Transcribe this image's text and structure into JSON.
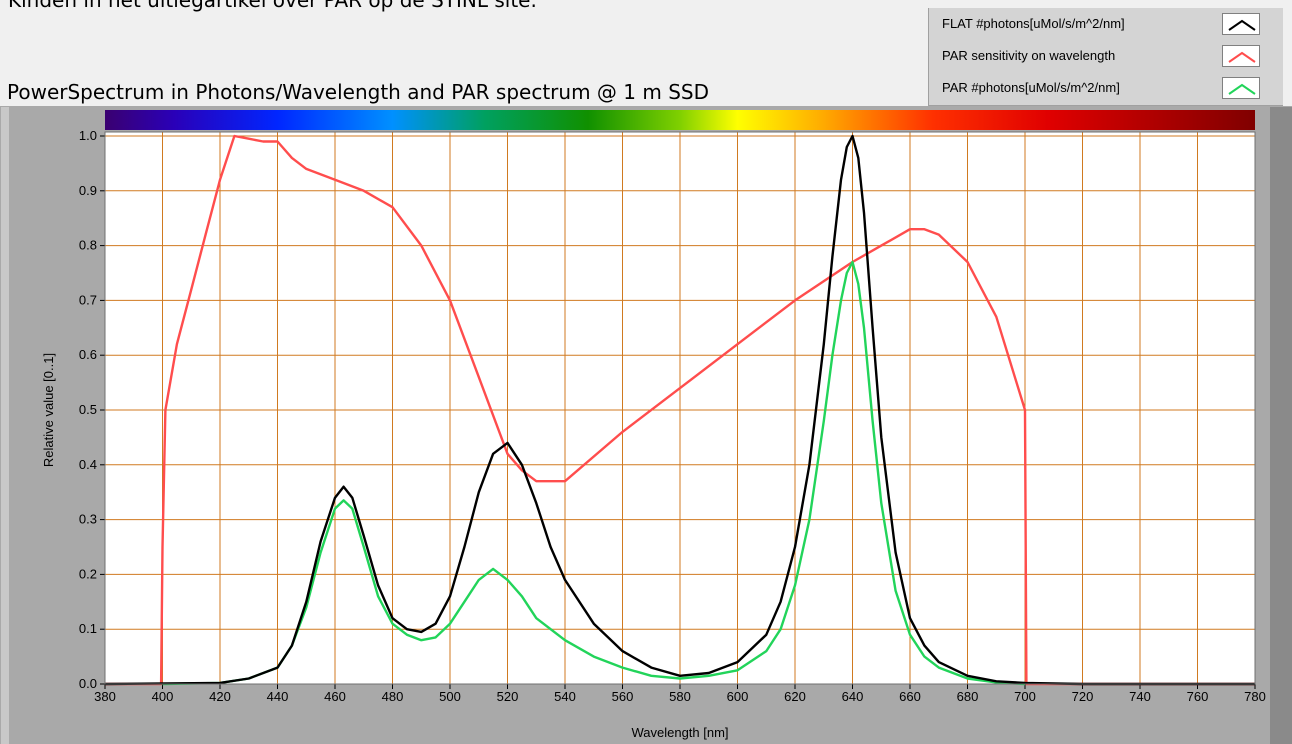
{
  "caption": "Kinden in het uitlegartikel over PAR op de STINL site.",
  "chart_data": {
    "type": "line",
    "title": "PowerSpectrum in Photons/Wavelength and PAR spectrum @ 1 m SSD",
    "xlabel": "Wavelength [nm]",
    "ylabel": "Relative value [0..1]",
    "xlim": [
      380,
      780
    ],
    "ylim": [
      0,
      1.05
    ],
    "xticks": [
      "380",
      "400",
      "420",
      "440",
      "460",
      "480",
      "500",
      "520",
      "540",
      "560",
      "580",
      "600",
      "620",
      "640",
      "660",
      "680",
      "700",
      "720",
      "740",
      "760",
      "780"
    ],
    "yticks": [
      "0.0",
      "0.1",
      "0.2",
      "0.3",
      "0.4",
      "0.5",
      "0.6",
      "0.7",
      "0.8",
      "0.9",
      "1.0"
    ],
    "grid": true,
    "legend_position": "top-right",
    "series": [
      {
        "name": "FLAT #photons[uMol/s/m^2/nm]",
        "color": "#000000",
        "x": [
          380,
          420,
          430,
          440,
          445,
          450,
          455,
          460,
          463,
          466,
          470,
          475,
          480,
          485,
          490,
          495,
          500,
          505,
          510,
          515,
          520,
          525,
          530,
          535,
          540,
          550,
          560,
          570,
          580,
          590,
          600,
          610,
          615,
          620,
          625,
          630,
          633,
          636,
          638,
          640,
          642,
          644,
          647,
          650,
          655,
          660,
          665,
          670,
          680,
          690,
          700,
          720,
          780
        ],
        "y": [
          0.0,
          0.002,
          0.01,
          0.03,
          0.07,
          0.15,
          0.26,
          0.34,
          0.36,
          0.34,
          0.27,
          0.18,
          0.12,
          0.1,
          0.095,
          0.11,
          0.16,
          0.25,
          0.35,
          0.42,
          0.44,
          0.4,
          0.33,
          0.25,
          0.19,
          0.11,
          0.06,
          0.03,
          0.015,
          0.02,
          0.04,
          0.09,
          0.15,
          0.25,
          0.4,
          0.62,
          0.78,
          0.92,
          0.98,
          1.0,
          0.96,
          0.86,
          0.65,
          0.45,
          0.24,
          0.12,
          0.07,
          0.04,
          0.015,
          0.005,
          0.002,
          0.0,
          0.0
        ]
      },
      {
        "name": "PAR sensitivity on wavelength",
        "color": "#ff4d4d",
        "x": [
          380,
          399.5,
          400,
          401,
          405,
          410,
          415,
          420,
          425,
          430,
          435,
          440,
          445,
          450,
          460,
          470,
          480,
          490,
          500,
          510,
          520,
          525,
          530,
          540,
          560,
          580,
          600,
          620,
          640,
          650,
          660,
          665,
          670,
          680,
          690,
          700,
          700.5,
          780
        ],
        "y": [
          0.0,
          0.0,
          0.25,
          0.5,
          0.62,
          0.72,
          0.82,
          0.92,
          1.0,
          0.995,
          0.99,
          0.99,
          0.96,
          0.94,
          0.92,
          0.9,
          0.87,
          0.8,
          0.7,
          0.56,
          0.42,
          0.39,
          0.37,
          0.37,
          0.46,
          0.54,
          0.62,
          0.7,
          0.77,
          0.8,
          0.83,
          0.83,
          0.82,
          0.77,
          0.67,
          0.5,
          0.0,
          0.0
        ]
      },
      {
        "name": "PAR #photons[uMol/s/m^2/nm]",
        "color": "#22d45a",
        "x": [
          400,
          420,
          430,
          440,
          445,
          450,
          455,
          460,
          463,
          466,
          470,
          475,
          480,
          485,
          490,
          495,
          500,
          505,
          510,
          515,
          520,
          525,
          530,
          540,
          550,
          560,
          570,
          580,
          590,
          600,
          610,
          615,
          620,
          625,
          630,
          633,
          636,
          638,
          640,
          642,
          644,
          647,
          650,
          655,
          660,
          665,
          670,
          680,
          690,
          700
        ],
        "y": [
          0.0,
          0.002,
          0.01,
          0.03,
          0.07,
          0.14,
          0.24,
          0.32,
          0.335,
          0.32,
          0.25,
          0.16,
          0.11,
          0.09,
          0.08,
          0.085,
          0.11,
          0.15,
          0.19,
          0.21,
          0.19,
          0.16,
          0.12,
          0.08,
          0.05,
          0.03,
          0.015,
          0.01,
          0.015,
          0.025,
          0.06,
          0.1,
          0.18,
          0.3,
          0.48,
          0.6,
          0.7,
          0.75,
          0.77,
          0.73,
          0.65,
          0.48,
          0.33,
          0.17,
          0.09,
          0.05,
          0.03,
          0.01,
          0.003,
          0.0
        ]
      }
    ]
  }
}
